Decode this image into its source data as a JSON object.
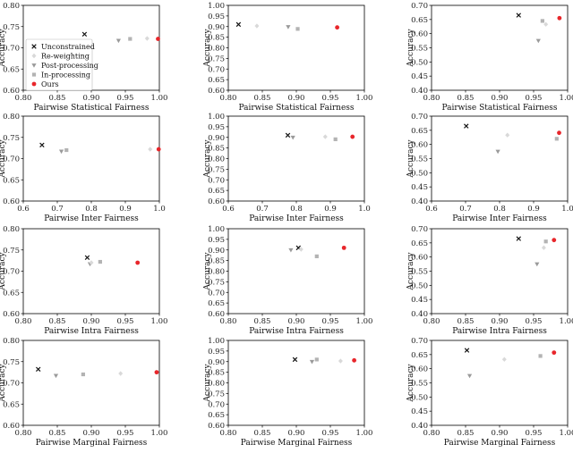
{
  "legend": {
    "items": [
      {
        "label": "Unconstrained",
        "marker": "x",
        "color": "#111111"
      },
      {
        "label": "Re-weighting",
        "marker": "diamond",
        "color": "#d9d9d9"
      },
      {
        "label": "Post-processing",
        "marker": "triangle-down",
        "color": "#9a9a9a"
      },
      {
        "label": "In-processing",
        "marker": "square",
        "color": "#b3b3b3"
      },
      {
        "label": "Ours",
        "marker": "circle",
        "color": "#e8262b"
      }
    ]
  },
  "chart_data": [
    {
      "type": "scatter",
      "xlabel": "Pairwise Statistical Fairness",
      "ylabel": "Accuracy",
      "xlim": [
        0.8,
        1.0
      ],
      "ylim": [
        0.6,
        0.8
      ],
      "xticks": [
        "0.80",
        "0.85",
        "0.90",
        "0.95",
        "1.00"
      ],
      "yticks": [
        "0.60",
        "0.65",
        "0.70",
        "0.75",
        "0.80"
      ],
      "points": [
        {
          "method": "Unconstrained",
          "x": 0.89,
          "y": 0.732
        },
        {
          "method": "Post-processing",
          "x": 0.94,
          "y": 0.717
        },
        {
          "method": "In-processing",
          "x": 0.957,
          "y": 0.721
        },
        {
          "method": "Re-weighting",
          "x": 0.982,
          "y": 0.722
        },
        {
          "method": "Ours",
          "x": 0.998,
          "y": 0.721
        }
      ]
    },
    {
      "type": "scatter",
      "xlabel": "Pairwise Statistical Fairness",
      "ylabel": "Accuracy",
      "xlim": [
        0.8,
        1.0
      ],
      "ylim": [
        0.6,
        1.0
      ],
      "xticks": [
        "0.80",
        "0.85",
        "0.90",
        "0.95",
        "1.00"
      ],
      "yticks": [
        "0.60",
        "0.65",
        "0.70",
        "0.75",
        "0.80",
        "0.85",
        "0.90",
        "0.95",
        "1.00"
      ],
      "points": [
        {
          "method": "Unconstrained",
          "x": 0.815,
          "y": 0.91
        },
        {
          "method": "Re-weighting",
          "x": 0.842,
          "y": 0.903
        },
        {
          "method": "Post-processing",
          "x": 0.888,
          "y": 0.899
        },
        {
          "method": "In-processing",
          "x": 0.902,
          "y": 0.889
        },
        {
          "method": "Ours",
          "x": 0.96,
          "y": 0.896
        }
      ]
    },
    {
      "type": "scatter",
      "xlabel": "Pairwise Statistical Fairness",
      "ylabel": "Accuracy",
      "xlim": [
        0.8,
        1.0
      ],
      "ylim": [
        0.4,
        0.7
      ],
      "xticks": [
        "0.80",
        "0.85",
        "0.90",
        "0.95",
        "1.00"
      ],
      "yticks": [
        "0.40",
        "0.45",
        "0.50",
        "0.55",
        "0.60",
        "0.65",
        "0.70"
      ],
      "points": [
        {
          "method": "Unconstrained",
          "x": 0.928,
          "y": 0.665
        },
        {
          "method": "Post-processing",
          "x": 0.957,
          "y": 0.575
        },
        {
          "method": "In-processing",
          "x": 0.963,
          "y": 0.645
        },
        {
          "method": "Re-weighting",
          "x": 0.968,
          "y": 0.633
        },
        {
          "method": "Ours",
          "x": 0.988,
          "y": 0.655
        }
      ]
    },
    {
      "type": "scatter",
      "xlabel": "Pairwise Inter Fairness",
      "ylabel": "Accuracy",
      "xlim": [
        0.6,
        1.0
      ],
      "ylim": [
        0.6,
        0.8
      ],
      "xticks": [
        "0.6",
        "0.7",
        "0.8",
        "0.9",
        "1.0"
      ],
      "yticks": [
        "0.60",
        "0.65",
        "0.70",
        "0.75",
        "0.80"
      ],
      "points": [
        {
          "method": "Unconstrained",
          "x": 0.655,
          "y": 0.732
        },
        {
          "method": "Post-processing",
          "x": 0.712,
          "y": 0.717
        },
        {
          "method": "In-processing",
          "x": 0.727,
          "y": 0.72
        },
        {
          "method": "Re-weighting",
          "x": 0.973,
          "y": 0.722
        },
        {
          "method": "Ours",
          "x": 0.998,
          "y": 0.722
        }
      ]
    },
    {
      "type": "scatter",
      "xlabel": "Pairwise Inter Fairness",
      "ylabel": "Accuracy",
      "xlim": [
        0.6,
        1.0
      ],
      "ylim": [
        0.6,
        1.0
      ],
      "xticks": [
        "0.6",
        "0.7",
        "0.8",
        "0.9",
        "1.0"
      ],
      "yticks": [
        "0.60",
        "0.65",
        "0.70",
        "0.75",
        "0.80",
        "0.85",
        "0.90",
        "0.95",
        "1.00"
      ],
      "points": [
        {
          "method": "Unconstrained",
          "x": 0.775,
          "y": 0.91
        },
        {
          "method": "Post-processing",
          "x": 0.79,
          "y": 0.9
        },
        {
          "method": "Re-weighting",
          "x": 0.885,
          "y": 0.903
        },
        {
          "method": "In-processing",
          "x": 0.915,
          "y": 0.891
        },
        {
          "method": "Ours",
          "x": 0.965,
          "y": 0.903
        }
      ]
    },
    {
      "type": "scatter",
      "xlabel": "Pairwise Inter Fairness",
      "ylabel": "Accuracy",
      "xlim": [
        0.6,
        1.0
      ],
      "ylim": [
        0.4,
        0.7
      ],
      "xticks": [
        "0.6",
        "0.7",
        "0.8",
        "0.9",
        "1.0"
      ],
      "yticks": [
        "0.40",
        "0.45",
        "0.50",
        "0.55",
        "0.60",
        "0.65",
        "0.70"
      ],
      "points": [
        {
          "method": "Unconstrained",
          "x": 0.702,
          "y": 0.665
        },
        {
          "method": "Post-processing",
          "x": 0.795,
          "y": 0.575
        },
        {
          "method": "Re-weighting",
          "x": 0.823,
          "y": 0.633
        },
        {
          "method": "In-processing",
          "x": 0.968,
          "y": 0.62
        },
        {
          "method": "Ours",
          "x": 0.975,
          "y": 0.641
        }
      ]
    },
    {
      "type": "scatter",
      "xlabel": "Pairwise Intra Fairness",
      "ylabel": "Accuracy",
      "xlim": [
        0.8,
        1.0
      ],
      "ylim": [
        0.6,
        0.8
      ],
      "xticks": [
        "0.80",
        "0.85",
        "0.90",
        "0.95",
        "1.00"
      ],
      "yticks": [
        "0.60",
        "0.65",
        "0.70",
        "0.75",
        "0.80"
      ],
      "points": [
        {
          "method": "Unconstrained",
          "x": 0.894,
          "y": 0.732
        },
        {
          "method": "Post-processing",
          "x": 0.898,
          "y": 0.717
        },
        {
          "method": "Re-weighting",
          "x": 0.9,
          "y": 0.72
        },
        {
          "method": "In-processing",
          "x": 0.913,
          "y": 0.722
        },
        {
          "method": "Ours",
          "x": 0.968,
          "y": 0.72
        }
      ]
    },
    {
      "type": "scatter",
      "xlabel": "Pairwise Intra Fairness",
      "ylabel": "Accuracy",
      "xlim": [
        0.8,
        1.0
      ],
      "ylim": [
        0.6,
        1.0
      ],
      "xticks": [
        "0.80",
        "0.85",
        "0.90",
        "0.95",
        "1.00"
      ],
      "yticks": [
        "0.60",
        "0.65",
        "0.70",
        "0.75",
        "0.80",
        "0.85",
        "0.90",
        "0.95",
        "1.00"
      ],
      "points": [
        {
          "method": "Post-processing",
          "x": 0.892,
          "y": 0.9
        },
        {
          "method": "Unconstrained",
          "x": 0.903,
          "y": 0.91
        },
        {
          "method": "Re-weighting",
          "x": 0.907,
          "y": 0.903
        },
        {
          "method": "In-processing",
          "x": 0.93,
          "y": 0.87
        },
        {
          "method": "Ours",
          "x": 0.97,
          "y": 0.91
        }
      ]
    },
    {
      "type": "scatter",
      "xlabel": "Pairwise Intra Fairness",
      "ylabel": "Accuracy",
      "xlim": [
        0.8,
        1.0
      ],
      "ylim": [
        0.4,
        0.7
      ],
      "xticks": [
        "0.80",
        "0.85",
        "0.90",
        "0.95",
        "1.00"
      ],
      "yticks": [
        "0.40",
        "0.45",
        "0.50",
        "0.55",
        "0.60",
        "0.65",
        "0.70"
      ],
      "points": [
        {
          "method": "Unconstrained",
          "x": 0.928,
          "y": 0.665
        },
        {
          "method": "Post-processing",
          "x": 0.955,
          "y": 0.575
        },
        {
          "method": "Re-weighting",
          "x": 0.965,
          "y": 0.633
        },
        {
          "method": "In-processing",
          "x": 0.968,
          "y": 0.655
        },
        {
          "method": "Ours",
          "x": 0.98,
          "y": 0.66
        }
      ]
    },
    {
      "type": "scatter",
      "xlabel": "Pairwise Marginal Fairness",
      "ylabel": "Accuracy",
      "xlim": [
        0.8,
        1.0
      ],
      "ylim": [
        0.6,
        0.8
      ],
      "xticks": [
        "0.80",
        "0.85",
        "0.90",
        "0.95",
        "1.00"
      ],
      "yticks": [
        "0.60",
        "0.65",
        "0.70",
        "0.75",
        "0.80"
      ],
      "points": [
        {
          "method": "Unconstrained",
          "x": 0.822,
          "y": 0.732
        },
        {
          "method": "Post-processing",
          "x": 0.848,
          "y": 0.717
        },
        {
          "method": "In-processing",
          "x": 0.888,
          "y": 0.72
        },
        {
          "method": "Re-weighting",
          "x": 0.943,
          "y": 0.722
        },
        {
          "method": "Ours",
          "x": 0.996,
          "y": 0.725
        }
      ]
    },
    {
      "type": "scatter",
      "xlabel": "Pairwise Marginal Fairness",
      "ylabel": "Accuracy",
      "xlim": [
        0.8,
        1.0
      ],
      "ylim": [
        0.6,
        1.0
      ],
      "xticks": [
        "0.80",
        "0.85",
        "0.90",
        "0.95",
        "1.00"
      ],
      "yticks": [
        "0.60",
        "0.65",
        "0.70",
        "0.75",
        "0.80",
        "0.85",
        "0.90",
        "0.95",
        "1.00"
      ],
      "points": [
        {
          "method": "Unconstrained",
          "x": 0.898,
          "y": 0.91
        },
        {
          "method": "Post-processing",
          "x": 0.923,
          "y": 0.9
        },
        {
          "method": "In-processing",
          "x": 0.93,
          "y": 0.91
        },
        {
          "method": "Re-weighting",
          "x": 0.965,
          "y": 0.903
        },
        {
          "method": "Ours",
          "x": 0.985,
          "y": 0.906
        }
      ]
    },
    {
      "type": "scatter",
      "xlabel": "Pairwise Marginal Fairness",
      "ylabel": "Accuracy",
      "xlim": [
        0.8,
        1.0
      ],
      "ylim": [
        0.4,
        0.7
      ],
      "xticks": [
        "0.80",
        "0.85",
        "0.90",
        "0.95",
        "1.00"
      ],
      "yticks": [
        "0.40",
        "0.45",
        "0.50",
        "0.55",
        "0.60",
        "0.65",
        "0.70"
      ],
      "points": [
        {
          "method": "Unconstrained",
          "x": 0.852,
          "y": 0.665
        },
        {
          "method": "Post-processing",
          "x": 0.856,
          "y": 0.575
        },
        {
          "method": "Re-weighting",
          "x": 0.907,
          "y": 0.633
        },
        {
          "method": "In-processing",
          "x": 0.96,
          "y": 0.645
        },
        {
          "method": "Ours",
          "x": 0.98,
          "y": 0.657
        }
      ]
    }
  ]
}
